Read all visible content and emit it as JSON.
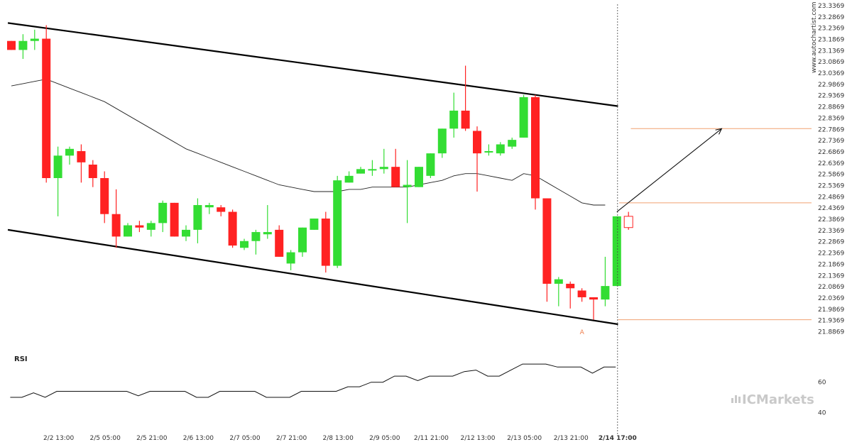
{
  "chart_data": {
    "type": "candlestick",
    "price_axis": {
      "ylim": [
        21.86,
        23.34
      ],
      "ticks": [
        "23.3369",
        "23.2869",
        "23.2369",
        "23.1869",
        "23.1369",
        "23.0869",
        "23.0369",
        "22.9869",
        "22.9369",
        "22.8869",
        "22.8369",
        "22.7869",
        "22.7369",
        "22.6869",
        "22.6369",
        "22.5869",
        "22.5369",
        "22.4869",
        "22.4369",
        "22.3869",
        "22.3369",
        "22.2869",
        "22.2369",
        "22.1869",
        "22.1369",
        "22.0869",
        "22.0369",
        "21.9869",
        "21.9369",
        "21.8869"
      ]
    },
    "time_axis": {
      "labels": [
        {
          "i": 4,
          "text": "2/2 13:00",
          "bold": false
        },
        {
          "i": 8,
          "text": "2/5 05:00",
          "bold": false
        },
        {
          "i": 12,
          "text": "2/5 21:00",
          "bold": false
        },
        {
          "i": 16,
          "text": "2/6 13:00",
          "bold": false
        },
        {
          "i": 20,
          "text": "2/7 05:00",
          "bold": false
        },
        {
          "i": 24,
          "text": "2/7 21:00",
          "bold": false
        },
        {
          "i": 28,
          "text": "2/8 13:00",
          "bold": false
        },
        {
          "i": 32,
          "text": "2/9 05:00",
          "bold": false
        },
        {
          "i": 36,
          "text": "2/11 21:00",
          "bold": false
        },
        {
          "i": 40,
          "text": "2/12 13:00",
          "bold": false
        },
        {
          "i": 44,
          "text": "2/13 05:00",
          "bold": false
        },
        {
          "i": 48,
          "text": "2/13 21:00",
          "bold": false
        },
        {
          "i": 52,
          "text": "2/14 17:00",
          "bold": true
        }
      ]
    },
    "candles": [
      {
        "o": 23.18,
        "h": 23.18,
        "l": 23.14,
        "c": 23.14
      },
      {
        "o": 23.14,
        "h": 23.21,
        "l": 23.1,
        "c": 23.18
      },
      {
        "o": 23.18,
        "h": 23.23,
        "l": 23.14,
        "c": 23.19
      },
      {
        "o": 23.19,
        "h": 23.25,
        "l": 22.55,
        "c": 22.57
      },
      {
        "o": 22.57,
        "h": 22.71,
        "l": 22.4,
        "c": 22.67
      },
      {
        "o": 22.67,
        "h": 22.71,
        "l": 22.63,
        "c": 22.7
      },
      {
        "o": 22.69,
        "h": 22.72,
        "l": 22.55,
        "c": 22.64
      },
      {
        "o": 22.63,
        "h": 22.65,
        "l": 22.53,
        "c": 22.57
      },
      {
        "o": 22.57,
        "h": 22.6,
        "l": 22.37,
        "c": 22.41
      },
      {
        "o": 22.41,
        "h": 22.52,
        "l": 22.26,
        "c": 22.31
      },
      {
        "o": 22.31,
        "h": 22.37,
        "l": 22.31,
        "c": 22.36
      },
      {
        "o": 22.36,
        "h": 22.38,
        "l": 22.33,
        "c": 22.35
      },
      {
        "o": 22.34,
        "h": 22.38,
        "l": 22.31,
        "c": 22.37
      },
      {
        "o": 22.37,
        "h": 22.47,
        "l": 22.33,
        "c": 22.46
      },
      {
        "o": 22.46,
        "h": 22.46,
        "l": 22.31,
        "c": 22.31
      },
      {
        "o": 22.31,
        "h": 22.36,
        "l": 22.29,
        "c": 22.34
      },
      {
        "o": 22.34,
        "h": 22.48,
        "l": 22.28,
        "c": 22.45
      },
      {
        "o": 22.44,
        "h": 22.46,
        "l": 22.41,
        "c": 22.45
      },
      {
        "o": 22.44,
        "h": 22.45,
        "l": 22.4,
        "c": 22.42
      },
      {
        "o": 22.42,
        "h": 22.43,
        "l": 22.26,
        "c": 22.27
      },
      {
        "o": 22.26,
        "h": 22.3,
        "l": 22.25,
        "c": 22.29
      },
      {
        "o": 22.29,
        "h": 22.34,
        "l": 22.23,
        "c": 22.33
      },
      {
        "o": 22.32,
        "h": 22.45,
        "l": 22.3,
        "c": 22.33
      },
      {
        "o": 22.34,
        "h": 22.36,
        "l": 22.22,
        "c": 22.22
      },
      {
        "o": 22.19,
        "h": 22.25,
        "l": 22.16,
        "c": 22.24
      },
      {
        "o": 22.24,
        "h": 22.35,
        "l": 22.22,
        "c": 22.35
      },
      {
        "o": 22.34,
        "h": 22.39,
        "l": 22.34,
        "c": 22.39
      },
      {
        "o": 22.39,
        "h": 22.42,
        "l": 22.15,
        "c": 22.18
      },
      {
        "o": 22.18,
        "h": 22.58,
        "l": 22.17,
        "c": 22.56
      },
      {
        "o": 22.55,
        "h": 22.6,
        "l": 22.55,
        "c": 22.58
      },
      {
        "o": 22.59,
        "h": 22.62,
        "l": 22.59,
        "c": 22.61
      },
      {
        "o": 22.61,
        "h": 22.65,
        "l": 22.58,
        "c": 22.61
      },
      {
        "o": 22.61,
        "h": 22.7,
        "l": 22.59,
        "c": 22.62
      },
      {
        "o": 22.62,
        "h": 22.7,
        "l": 22.53,
        "c": 22.53
      },
      {
        "o": 22.53,
        "h": 22.65,
        "l": 22.37,
        "c": 22.54
      },
      {
        "o": 22.53,
        "h": 22.62,
        "l": 22.53,
        "c": 22.62
      },
      {
        "o": 22.58,
        "h": 22.68,
        "l": 22.57,
        "c": 22.68
      },
      {
        "o": 22.68,
        "h": 22.79,
        "l": 22.66,
        "c": 22.79
      },
      {
        "o": 22.79,
        "h": 22.95,
        "l": 22.75,
        "c": 22.87
      },
      {
        "o": 22.87,
        "h": 23.07,
        "l": 22.78,
        "c": 22.79
      },
      {
        "o": 22.78,
        "h": 22.8,
        "l": 22.51,
        "c": 22.68
      },
      {
        "o": 22.69,
        "h": 22.72,
        "l": 22.67,
        "c": 22.69
      },
      {
        "o": 22.68,
        "h": 22.73,
        "l": 22.67,
        "c": 22.72
      },
      {
        "o": 22.71,
        "h": 22.75,
        "l": 22.7,
        "c": 22.74
      },
      {
        "o": 22.75,
        "h": 22.94,
        "l": 22.75,
        "c": 22.93
      },
      {
        "o": 22.93,
        "h": 22.94,
        "l": 22.43,
        "c": 22.48
      },
      {
        "o": 22.48,
        "h": 22.48,
        "l": 22.02,
        "c": 22.1
      },
      {
        "o": 22.1,
        "h": 22.13,
        "l": 22.0,
        "c": 22.12
      },
      {
        "o": 22.1,
        "h": 22.11,
        "l": 21.99,
        "c": 22.08
      },
      {
        "o": 22.07,
        "h": 22.08,
        "l": 22.02,
        "c": 22.04
      },
      {
        "o": 22.04,
        "h": 22.04,
        "l": 21.94,
        "c": 22.03
      },
      {
        "o": 22.03,
        "h": 22.22,
        "l": 22.0,
        "c": 22.09
      },
      {
        "o": 22.09,
        "h": 22.4,
        "l": 22.09,
        "c": 22.4
      },
      {
        "o": 22.4,
        "h": 22.42,
        "l": 22.34,
        "c": 22.35
      }
    ],
    "moving_average": [
      22.98,
      22.99,
      23.0,
      23.01,
      22.99,
      22.97,
      22.95,
      22.93,
      22.91,
      22.88,
      22.85,
      22.82,
      22.79,
      22.76,
      22.73,
      22.7,
      22.68,
      22.66,
      22.64,
      22.62,
      22.6,
      22.58,
      22.56,
      22.54,
      22.53,
      22.52,
      22.51,
      22.51,
      22.51,
      22.52,
      22.52,
      22.53,
      22.53,
      22.53,
      22.53,
      22.54,
      22.55,
      22.56,
      22.58,
      22.59,
      22.59,
      22.58,
      22.57,
      22.56,
      22.59,
      22.58,
      22.55,
      22.52,
      22.49,
      22.46,
      22.45,
      22.45
    ],
    "channel": {
      "upper": {
        "i1": -0.3,
        "v1": 23.26,
        "i2": 52.1,
        "v2": 22.89
      },
      "lower": {
        "i1": -0.3,
        "v1": 22.34,
        "i2": 52.1,
        "v2": 21.92
      }
    },
    "levels": [
      {
        "value": 22.79,
        "from_i": 53.2
      },
      {
        "value": 22.46,
        "from_i": 52.2
      },
      {
        "value": 21.94,
        "from_i": 52.1
      }
    ],
    "projection": {
      "from_i": 52.0,
      "from_v": 22.42,
      "to_i": 61.0,
      "to_v": 22.79
    },
    "point_label": {
      "text": "A",
      "i": 49.0,
      "v": 21.92
    },
    "rsi": {
      "label": "RSI",
      "ticks": [
        "60",
        "40"
      ],
      "ylim": [
        35,
        80
      ],
      "values": [
        50,
        50,
        53,
        50,
        54,
        54,
        54,
        54,
        54,
        54,
        54,
        51,
        54,
        54,
        54,
        54,
        50,
        50,
        54,
        54,
        54,
        54,
        50,
        50,
        50,
        54,
        54,
        54,
        54,
        57,
        57,
        60,
        60,
        64,
        64,
        61,
        64,
        64,
        64,
        67,
        68,
        64,
        64,
        68,
        72,
        72,
        72,
        70,
        70,
        70,
        66,
        70,
        70
      ]
    },
    "watermark": "www.autochartist.com",
    "brand": {
      "prefix": "IC",
      "name": "Markets"
    }
  }
}
